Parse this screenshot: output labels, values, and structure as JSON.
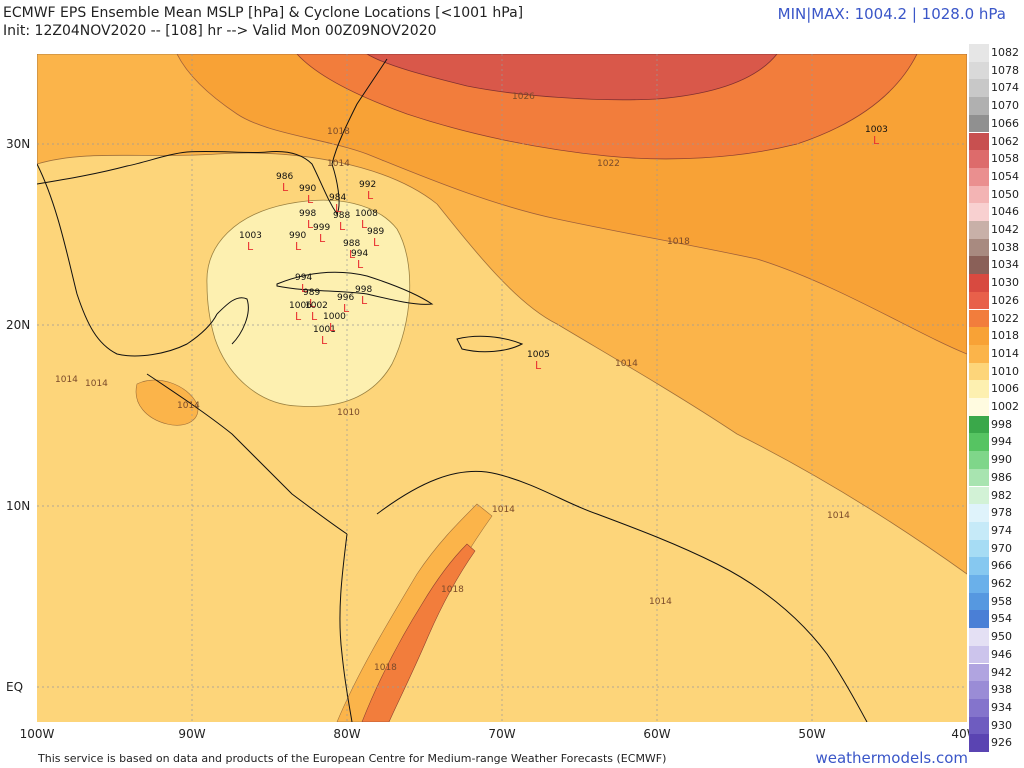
{
  "header": {
    "title_line1": "ECMWF EPS Ensemble Mean MSLP [hPa] & Cyclone Locations [<1001 hPa]",
    "title_line2": "Init: 12Z04NOV2020 -- [108] hr --> Valid Mon 00Z09NOV2020",
    "minmax": "MIN|MAX: 1004.2 | 1028.0 hPa"
  },
  "colors": {
    "bg_1010": "#fdd57a",
    "band_1014": "#fbb44a",
    "band_1018": "#f8a236",
    "band_1022": "#f27d3c",
    "band_1026": "#d9584a",
    "low_1006": "#fdf0b0",
    "ocean_grid": "#aaaaaa",
    "land_line": "#111111",
    "cyclone_mark": "#e83030",
    "accent_blue": "#3a56c8"
  },
  "map": {
    "lat_labels": [
      "30N",
      "20N",
      "10N",
      "EQ"
    ],
    "lon_labels": [
      "100W",
      "90W",
      "80W",
      "70W",
      "60W",
      "50W",
      "40W"
    ],
    "contour_labels": [
      "1026",
      "1022",
      "1018",
      "1018",
      "1014",
      "1014",
      "1014",
      "1014",
      "1014",
      "1014",
      "1014",
      "1014",
      "1018",
      "1018",
      "1010"
    ],
    "cyclones": [
      {
        "label": "1003"
      },
      {
        "label": "986"
      },
      {
        "label": "990"
      },
      {
        "label": "992"
      },
      {
        "label": "1003"
      },
      {
        "label": "984"
      },
      {
        "label": "998"
      },
      {
        "label": "999"
      },
      {
        "label": "988"
      },
      {
        "label": "1008"
      },
      {
        "label": "990"
      },
      {
        "label": "989"
      },
      {
        "label": "994"
      },
      {
        "label": "989"
      },
      {
        "label": "1002"
      },
      {
        "label": "1006"
      },
      {
        "label": "1001"
      },
      {
        "label": "1000"
      },
      {
        "label": "998"
      },
      {
        "label": "994"
      },
      {
        "label": "996"
      },
      {
        "label": "988"
      },
      {
        "label": "1005"
      }
    ]
  },
  "legend": {
    "levels": [
      {
        "label": "1082",
        "color": "#e6e6e6"
      },
      {
        "label": "1078",
        "color": "#d9d9d9"
      },
      {
        "label": "1074",
        "color": "#c8c8c8"
      },
      {
        "label": "1070",
        "color": "#b0b0b0"
      },
      {
        "label": "1066",
        "color": "#909090"
      },
      {
        "label": "1062",
        "color": "#c85050"
      },
      {
        "label": "1058",
        "color": "#dd6b6b"
      },
      {
        "label": "1054",
        "color": "#ea8f8f"
      },
      {
        "label": "1050",
        "color": "#f3b4b4"
      },
      {
        "label": "1046",
        "color": "#f8d0d0"
      },
      {
        "label": "1042",
        "color": "#c8b0a8"
      },
      {
        "label": "1038",
        "color": "#a88a80"
      },
      {
        "label": "1034",
        "color": "#8a6058"
      },
      {
        "label": "1030",
        "color": "#d84a40"
      },
      {
        "label": "1026",
        "color": "#e8604a"
      },
      {
        "label": "1022",
        "color": "#f27d3c"
      },
      {
        "label": "1018",
        "color": "#f8a236"
      },
      {
        "label": "1014",
        "color": "#fbb44a"
      },
      {
        "label": "1010",
        "color": "#fdd57a"
      },
      {
        "label": "1006",
        "color": "#fdf0b0"
      },
      {
        "label": "1002",
        "color": "#fffbe0"
      },
      {
        "label": "998",
        "color": "#3aa84a"
      },
      {
        "label": "994",
        "color": "#56c462"
      },
      {
        "label": "990",
        "color": "#7fd68a"
      },
      {
        "label": "986",
        "color": "#a8e4b0"
      },
      {
        "label": "982",
        "color": "#d2f2d6"
      },
      {
        "label": "978",
        "color": "#dff3fb"
      },
      {
        "label": "974",
        "color": "#c6eaf8"
      },
      {
        "label": "970",
        "color": "#a6dcf4"
      },
      {
        "label": "966",
        "color": "#86c8f0"
      },
      {
        "label": "962",
        "color": "#6ab0ea"
      },
      {
        "label": "958",
        "color": "#5698e0"
      },
      {
        "label": "954",
        "color": "#4a7fd6"
      },
      {
        "label": "950",
        "color": "#e4e0f4"
      },
      {
        "label": "946",
        "color": "#ccc4ec"
      },
      {
        "label": "942",
        "color": "#b0a4e0"
      },
      {
        "label": "938",
        "color": "#9a8cd6"
      },
      {
        "label": "934",
        "color": "#8474cc"
      },
      {
        "label": "930",
        "color": "#6e5cc0"
      },
      {
        "label": "926",
        "color": "#5a44b2"
      }
    ]
  },
  "footer": {
    "credit": "This service is based on data and products of the European Centre for Medium-range Weather Forecasts (ECMWF)",
    "brand": "weathermodels.com"
  }
}
